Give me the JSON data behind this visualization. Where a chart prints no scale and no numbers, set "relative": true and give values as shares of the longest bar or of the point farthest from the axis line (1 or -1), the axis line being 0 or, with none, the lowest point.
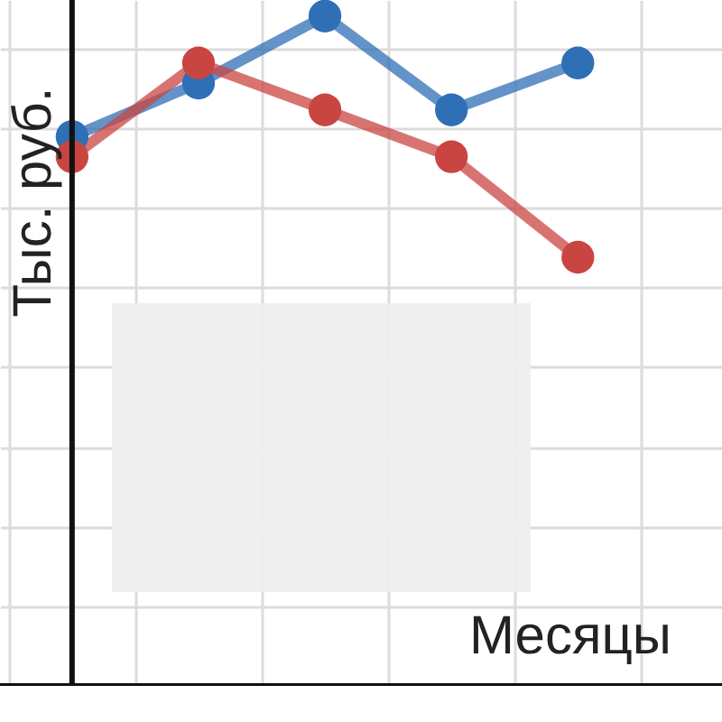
{
  "chart_data": {
    "type": "line",
    "relative": true,
    "xlabel": "Месяцы",
    "ylabel": "Тыс. руб.",
    "grid": true,
    "marker": "circle",
    "categories": [
      null,
      null,
      null,
      null,
      null
    ],
    "series": [
      {
        "color": "#2f6fb5",
        "values": [
          0.82,
          0.9,
          1,
          0.86,
          0.93
        ]
      },
      {
        "color": "#c94541",
        "values": [
          0.79,
          0.93,
          0.86,
          0.79,
          0.64
        ]
      }
    ]
  }
}
